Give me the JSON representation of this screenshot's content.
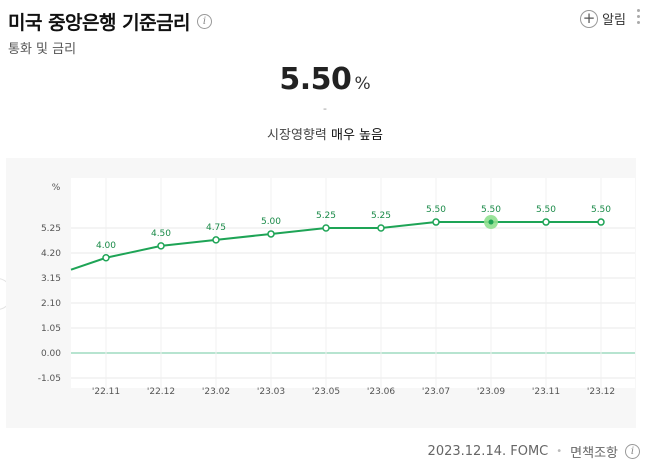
{
  "header": {
    "title": "미국 중앙은행 기준금리",
    "subtitle": "통화 및 금리",
    "alarm_label": "알림"
  },
  "summary": {
    "value": "5.50",
    "unit": "%",
    "change": "-",
    "impact_prefix": "시장영향력",
    "impact_level": "매우 높음"
  },
  "footer": {
    "source": "2023.12.14. FOMC",
    "disclaimer": "면책조항"
  },
  "colors": {
    "line": "#1ea456",
    "zero_line": "#6fc9a0",
    "highlight": "#8fe08f"
  },
  "chart_data": {
    "type": "line",
    "unit_label": "%",
    "y_ticks": [
      "5.25",
      "4.20",
      "3.15",
      "2.10",
      "1.05",
      "0.00",
      "-1.05"
    ],
    "ylim": [
      -1.05,
      5.25
    ],
    "categories": [
      "'22.11",
      "'22.12",
      "'23.02",
      "'23.03",
      "'23.05",
      "'23.06",
      "'23.07",
      "'23.09",
      "'23.11",
      "'23.12"
    ],
    "values": [
      4.0,
      4.5,
      4.75,
      5.0,
      5.25,
      5.25,
      5.5,
      5.5,
      5.5,
      5.5
    ],
    "point_labels": [
      "4.00",
      "4.50",
      "4.75",
      "5.00",
      "5.25",
      "5.25",
      "5.50",
      "5.50",
      "5.50",
      "5.50"
    ],
    "start_value": 3.5,
    "highlight_index": 7,
    "grid": true
  }
}
